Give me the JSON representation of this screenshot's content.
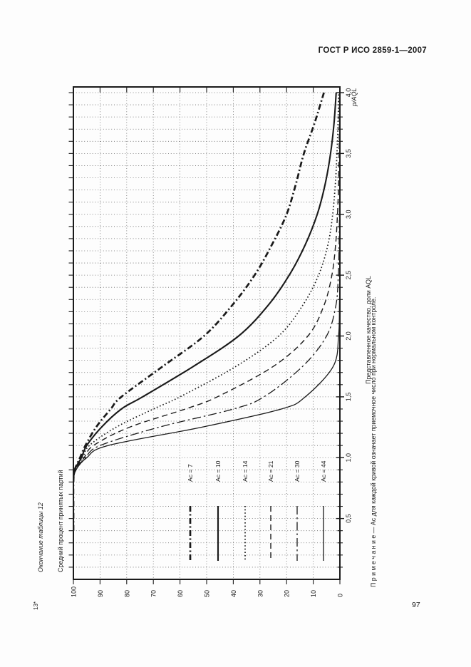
{
  "page": {
    "header": "ГОСТ Р ИСО 2859-1—2007",
    "table_caption": "Окончание таблицы 12",
    "footnote_mark": "13*",
    "note": "П р и м е ч а н и е — Ас для каждой кривой означает приемочное число при нормальном контроле.",
    "page_number": "97"
  },
  "chart_data": {
    "type": "line",
    "title": "",
    "rotated_90_degrees": true,
    "xlabel": "Средний процент принятых партий",
    "ylabel": "Представленное качество, доли AQL",
    "corner_label": "p/AQL",
    "percent_axis": {
      "range": [
        100,
        0
      ],
      "tick_values": [
        100,
        90,
        80,
        70,
        60,
        50,
        40,
        30,
        20,
        10,
        0
      ],
      "tick_labels": [
        "100",
        "90",
        "80",
        "70",
        "60",
        "50",
        "40",
        "30",
        "20",
        "10",
        "0"
      ],
      "grid_step": 10
    },
    "ratio_axis": {
      "range": [
        0,
        4.0
      ],
      "tick_values": [
        0.5,
        1.0,
        1.5,
        2.0,
        2.5,
        3.0,
        3.5,
        4.0
      ],
      "tick_labels": [
        "0,5",
        "1,0",
        "1,5",
        "2,0",
        "2,5",
        "3,0",
        "3,5",
        "4,0"
      ],
      "minor_step": 0.1
    },
    "grid": "dotted",
    "legend_position": "inside-lower-area",
    "x": [
      0.4,
      0.6,
      0.8,
      0.9,
      1.0,
      1.1,
      1.25,
      1.4,
      1.5,
      1.75,
      2.0,
      2.25,
      2.5,
      2.75,
      3.0,
      3.25,
      3.5,
      3.75,
      4.0
    ],
    "series": [
      {
        "name": "Ac = 7",
        "ac": 7,
        "line_style": "dashdot-bold",
        "values": [
          100,
          100,
          100,
          99.5,
          97.5,
          95.5,
          91.5,
          86,
          82,
          66.5,
          51,
          40.5,
          32,
          25.5,
          20,
          16.5,
          13.5,
          9.5,
          6
        ]
      },
      {
        "name": "Ac = 10",
        "ac": 10,
        "line_style": "solid-bold",
        "values": [
          100,
          100,
          100,
          99.5,
          97,
          95,
          89.5,
          82,
          74,
          55,
          38,
          27,
          19,
          13,
          8.5,
          5.5,
          3.5,
          2.2,
          1.4
        ]
      },
      {
        "name": "Ac = 14",
        "ac": 14,
        "line_style": "dotted",
        "values": [
          100,
          100,
          100,
          99.5,
          96.5,
          94,
          84,
          70,
          60,
          39,
          23,
          14,
          8,
          4.5,
          2.7,
          1.7,
          1.1,
          0.7,
          0.5
        ]
      },
      {
        "name": "Ac = 21",
        "ac": 21,
        "line_style": "dashed",
        "values": [
          100,
          100,
          100,
          99.5,
          96,
          92.5,
          79,
          58,
          46,
          25,
          12,
          6,
          3,
          1.6,
          0.9,
          0.5,
          0.3,
          0.2,
          0.15
        ]
      },
      {
        "name": "Ac = 30",
        "ac": 30,
        "line_style": "dashdot",
        "values": [
          100,
          100,
          100,
          99,
          95.5,
          90,
          68,
          40,
          28.5,
          14,
          5,
          1.5,
          0.6,
          0.3,
          0.15,
          0.1,
          0.05,
          0.05,
          0.05
        ]
      },
      {
        "name": "Ac = 44",
        "ac": 44,
        "line_style": "solid",
        "values": [
          100,
          100,
          100,
          99,
          95,
          87,
          52,
          22,
          13,
          2.5,
          0.5,
          0.15,
          0.05,
          0.05,
          0.05,
          0.05,
          0.05,
          0.05,
          0.05
        ]
      }
    ],
    "colors": {
      "ink": "#1a1a1a",
      "grid": "#6a6a6a",
      "paper": "#fdfdfd"
    }
  }
}
